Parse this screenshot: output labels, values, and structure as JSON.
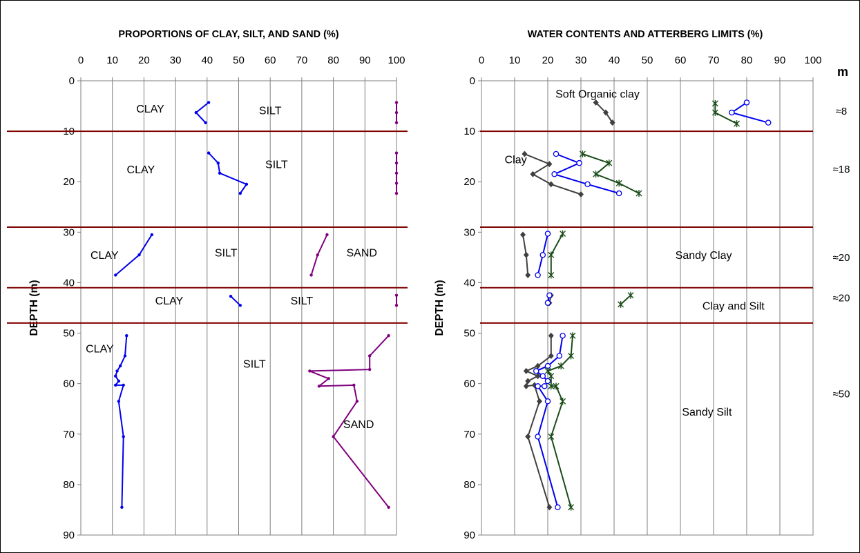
{
  "chart_data": [
    {
      "type": "line",
      "title": "PROPORTIONS OF CLAY, SILT, AND SAND  (%)",
      "ylabel": "DEPTH  (m)",
      "xlim": [
        0,
        100
      ],
      "ylim": [
        0,
        90
      ],
      "x_ticks": [
        "0",
        "10",
        "20",
        "30",
        "40",
        "50",
        "60",
        "70",
        "80",
        "90",
        "100"
      ],
      "y_ticks": [
        "0",
        "10",
        "20",
        "30",
        "40",
        "50",
        "60",
        "70",
        "80",
        "90"
      ],
      "layer_boundaries": [
        10,
        29,
        41,
        48
      ],
      "colors": {
        "clay_silt": "#0000ee",
        "silt_sand": "#7f007f",
        "boundary": "#7f0000"
      },
      "annotations": [
        {
          "text": "CLAY",
          "x": 22,
          "y": 5.5
        },
        {
          "text": "SILT",
          "x": 60,
          "y": 5.8
        },
        {
          "text": "CLAY",
          "x": 19,
          "y": 17.5
        },
        {
          "text": "SILT",
          "x": 62,
          "y": 16.5
        },
        {
          "text": "CLAY",
          "x": 7.5,
          "y": 34.5
        },
        {
          "text": "SILT",
          "x": 46,
          "y": 34
        },
        {
          "text": "SAND",
          "x": 89,
          "y": 34
        },
        {
          "text": "CLAY",
          "x": 28,
          "y": 43.5
        },
        {
          "text": "SILT",
          "x": 70,
          "y": 43.5
        },
        {
          "text": "CLAY",
          "x": 6,
          "y": 53
        },
        {
          "text": "SILT",
          "x": 55,
          "y": 56
        },
        {
          "text": "SAND",
          "x": 88,
          "y": 68
        }
      ],
      "series": [
        {
          "color": "#0000ee",
          "segments": [
            [
              [
                40.5,
                4.3
              ],
              [
                36.5,
                6.3
              ],
              [
                39.5,
                8.3
              ]
            ],
            [
              [
                40.5,
                14.3
              ],
              [
                43.5,
                16.3
              ],
              [
                44,
                18.3
              ],
              [
                52.5,
                20.5
              ],
              [
                50.5,
                22.3
              ]
            ],
            [
              [
                22.5,
                30.5
              ],
              [
                18.5,
                34.5
              ],
              [
                11,
                38.5
              ]
            ],
            [
              [
                47.5,
                42.7
              ],
              [
                50.5,
                44.5
              ]
            ],
            [
              [
                14.5,
                50.5
              ],
              [
                14,
                54.5
              ],
              [
                12.5,
                56.5
              ],
              [
                11.5,
                57.5
              ],
              [
                11,
                58.5
              ],
              [
                12,
                59.5
              ],
              [
                11,
                60.3
              ],
              [
                13.5,
                60.3
              ],
              [
                12,
                63.5
              ],
              [
                13.5,
                70.5
              ],
              [
                13,
                84.5
              ]
            ]
          ]
        },
        {
          "color": "#7f007f",
          "segments": [
            [
              [
                100,
                4.3
              ],
              [
                100,
                6.3
              ],
              [
                100,
                8.3
              ]
            ],
            [
              [
                100,
                14.3
              ],
              [
                100,
                16.3
              ],
              [
                100,
                18.3
              ],
              [
                100,
                20.3
              ],
              [
                100,
                22.3
              ]
            ],
            [
              [
                78,
                30.5
              ],
              [
                75,
                34.5
              ],
              [
                73,
                38.5
              ]
            ],
            [
              [
                100,
                42.5
              ],
              [
                100,
                44.5
              ]
            ],
            [
              [
                97.5,
                50.5
              ],
              [
                91.5,
                54.5
              ],
              [
                91.5,
                57.2
              ],
              [
                72.5,
                57.5
              ],
              [
                78.5,
                59
              ],
              [
                75.5,
                60.5
              ],
              [
                86.5,
                60.3
              ],
              [
                87.5,
                63.5
              ],
              [
                80,
                70.5
              ],
              [
                97.5,
                84.5
              ]
            ]
          ]
        }
      ]
    },
    {
      "type": "line",
      "title": "WATER CONTENTS AND ATTERBERG LIMITS  (%)",
      "ylabel": "DEPTH  (m)",
      "xlim": [
        0,
        100
      ],
      "ylim": [
        0,
        90
      ],
      "x_ticks": [
        "0",
        "10",
        "20",
        "30",
        "40",
        "50",
        "60",
        "70",
        "80",
        "90",
        "100"
      ],
      "y_ticks": [
        "0",
        "10",
        "20",
        "30",
        "40",
        "50",
        "60",
        "70",
        "80",
        "90"
      ],
      "layer_boundaries": [
        10,
        29,
        41,
        48
      ],
      "right_unit": "m",
      "thickness_labels": [
        {
          "text": "≈8",
          "depth": 6
        },
        {
          "text": "≈18",
          "depth": 17.5
        },
        {
          "text": "≈20",
          "depth": 35
        },
        {
          "text": "≈20",
          "depth": 43
        },
        {
          "text": "≈50",
          "depth": 62
        }
      ],
      "annotations": [
        {
          "text": "Soft Organic clay",
          "x": 35,
          "y": 2.5,
          "anchor": "middle"
        },
        {
          "text": "Clay",
          "x": 7,
          "y": 15.5,
          "anchor": "start"
        },
        {
          "text": "Sandy Clay",
          "x": 67,
          "y": 34.5,
          "anchor": "middle"
        },
        {
          "text": "Clay and Silt",
          "x": 76,
          "y": 44.5,
          "anchor": "middle"
        },
        {
          "text": "Sandy Silt",
          "x": 68,
          "y": 65.5,
          "anchor": "middle"
        }
      ],
      "series": [
        {
          "color": "#404040",
          "marker": "diamond",
          "segments": [
            [
              [
                34.5,
                4.3
              ],
              [
                37.5,
                6.3
              ],
              [
                39.5,
                8.3
              ]
            ],
            [
              [
                13,
                14.5
              ],
              [
                20.5,
                16.5
              ],
              [
                15.5,
                18.5
              ],
              [
                21,
                20.5
              ],
              [
                30,
                22.5
              ]
            ],
            [
              [
                12.5,
                30.5
              ],
              [
                13.5,
                34.5
              ],
              [
                14,
                38.5
              ]
            ],
            [
              [
                21,
                42.5
              ],
              [
                20.5,
                44
              ]
            ],
            [
              [
                21,
                50.5
              ],
              [
                21,
                54.5
              ],
              [
                17,
                56.5
              ],
              [
                13.5,
                57.5
              ],
              [
                17,
                58.5
              ],
              [
                14,
                59.5
              ],
              [
                13.5,
                60.5
              ],
              [
                16,
                60.3
              ],
              [
                17.5,
                63.5
              ],
              [
                14,
                70.5
              ],
              [
                20.5,
                84.5
              ]
            ]
          ]
        },
        {
          "color": "#0000ee",
          "marker": "circle",
          "segments": [
            [
              [
                80,
                4.3
              ],
              [
                75.5,
                6.3
              ],
              [
                86.5,
                8.3
              ]
            ],
            [
              [
                22.5,
                14.5
              ],
              [
                29.5,
                16.3
              ],
              [
                22,
                18.5
              ],
              [
                32,
                20.5
              ],
              [
                41.5,
                22.3
              ]
            ],
            [
              [
                20,
                30.3
              ],
              [
                18.5,
                34.5
              ],
              [
                17,
                38.5
              ]
            ],
            [
              [
                20.5,
                42.5
              ],
              [
                20,
                44
              ]
            ],
            [
              [
                24.5,
                50.5
              ],
              [
                23.5,
                54.5
              ],
              [
                20,
                56.5
              ],
              [
                16.5,
                57.5
              ],
              [
                18.5,
                58.5
              ],
              [
                20,
                59.5
              ],
              [
                19,
                60.5
              ],
              [
                17,
                60.5
              ],
              [
                20,
                63.5
              ],
              [
                17,
                70.5
              ],
              [
                23,
                84.5
              ]
            ]
          ]
        },
        {
          "color": "#1a4d1a",
          "marker": "star",
          "segments": [
            [
              [
                70.5,
                4.5
              ],
              [
                70.5,
                6.3
              ],
              [
                77,
                8.5
              ]
            ],
            [
              [
                30.5,
                14.5
              ],
              [
                38.5,
                16.3
              ],
              [
                34.5,
                18.5
              ],
              [
                41.5,
                20.3
              ],
              [
                47.5,
                22.3
              ]
            ],
            [
              [
                24.5,
                30.3
              ],
              [
                21,
                34.5
              ],
              [
                21,
                38.5
              ]
            ],
            [
              [
                45,
                42.5
              ],
              [
                42,
                44.3
              ]
            ],
            [
              [
                27.5,
                50.5
              ],
              [
                27,
                54.5
              ],
              [
                24,
                56.5
              ],
              [
                20,
                57.5
              ],
              [
                21,
                58.5
              ],
              [
                21,
                60.5
              ],
              [
                22.5,
                60.5
              ],
              [
                24.5,
                63.5
              ],
              [
                21,
                70.5
              ],
              [
                27,
                84.5
              ]
            ]
          ]
        }
      ]
    }
  ]
}
